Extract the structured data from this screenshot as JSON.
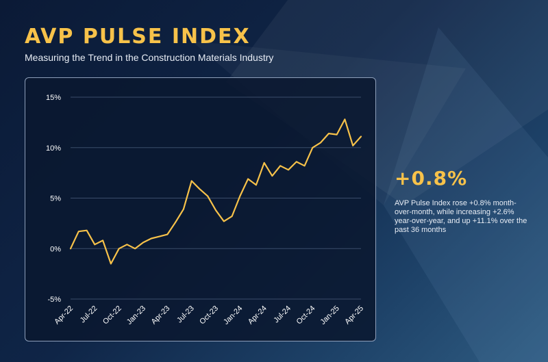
{
  "header": {
    "title": "AVP PULSE INDEX",
    "subtitle": "Measuring the Trend in the Construction Materials Industry"
  },
  "summary": {
    "headline": "+0.8%",
    "description": "AVP Pulse Index rose +0.8% month-over-month, while increasing +2.6% year-over-year, and up +11.1% over the past 36 months"
  },
  "colors": {
    "accent": "#f7c24a",
    "grid": "#3b4d6b",
    "text": "#ffffff"
  },
  "chart_data": {
    "type": "line",
    "title": "",
    "xlabel": "",
    "ylabel": "",
    "ylim": [
      -5,
      15
    ],
    "yticks": [
      -5,
      0,
      5,
      10,
      15
    ],
    "ytick_labels": [
      "-5%",
      "0%",
      "5%",
      "10%",
      "15%"
    ],
    "xtick_labels": [
      "Apr-22",
      "Jul-22",
      "Oct-22",
      "Jan-23",
      "Apr-23",
      "Jul-23",
      "Oct-23",
      "Jan-24",
      "Apr-24",
      "Jul-24",
      "Oct-24",
      "Jan-25",
      "Apr-25"
    ],
    "xtick_every": 3,
    "grid": true,
    "legend": "none",
    "series": [
      {
        "values": [
          0.0,
          1.7,
          1.8,
          0.4,
          0.8,
          -1.5,
          0.0,
          0.4,
          0.0,
          0.6,
          1.0,
          1.2,
          1.4,
          2.6,
          3.9,
          6.7,
          5.9,
          5.2,
          3.8,
          2.7,
          3.2,
          5.2,
          6.9,
          6.3,
          8.5,
          7.2,
          8.2,
          7.8,
          8.6,
          8.2,
          10.0,
          10.5,
          11.4,
          11.3,
          12.8,
          10.2,
          11.1
        ]
      }
    ]
  }
}
